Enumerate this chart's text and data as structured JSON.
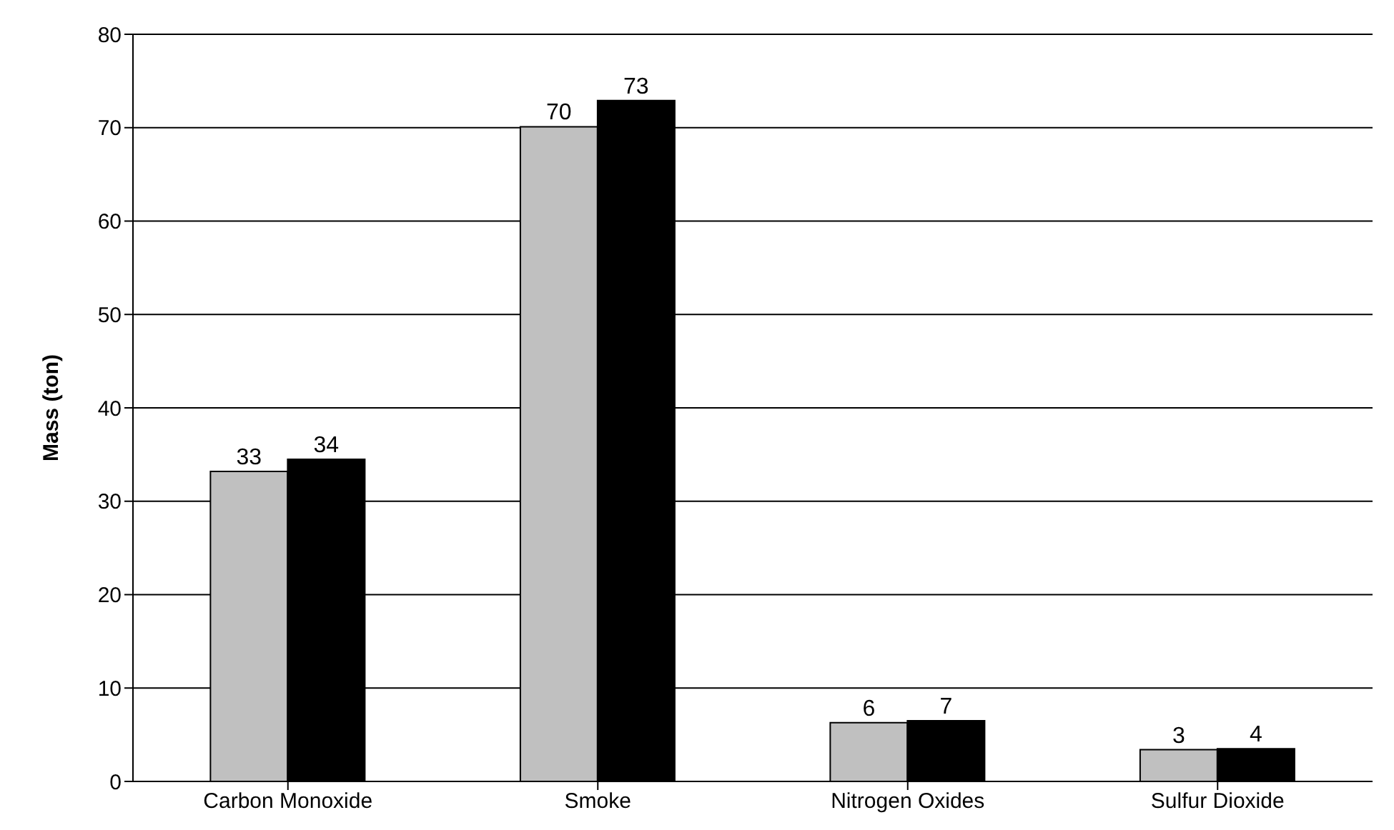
{
  "chart_data": {
    "type": "bar",
    "ylabel": "Mass (ton)",
    "categories": [
      "Carbon Monoxide",
      "Smoke",
      "Nitrogen Oxides",
      "Sulfur Dioxide"
    ],
    "series": [
      {
        "color": "#c0c0c0",
        "values": [
          33.2,
          70.1,
          6.3,
          3.4
        ],
        "value_labels": [
          "33",
          "70",
          "6",
          "3"
        ]
      },
      {
        "color": "#000000",
        "values": [
          34.5,
          72.9,
          6.5,
          3.5
        ],
        "value_labels": [
          "34",
          "73",
          "7",
          "4"
        ]
      }
    ],
    "ylim": [
      0,
      80
    ],
    "yticks": [
      0,
      10,
      20,
      30,
      40,
      50,
      60,
      70,
      80
    ],
    "grid": "y"
  }
}
